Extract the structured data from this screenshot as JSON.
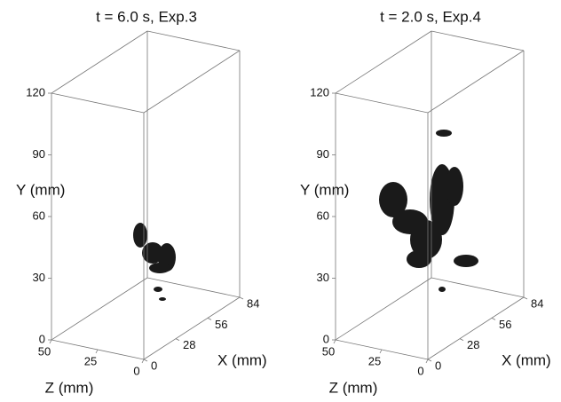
{
  "chart_data": [
    {
      "type": "box3d",
      "title": "t = 6.0 s, Exp.3",
      "xlabel": "X (mm)",
      "ylabel": "Y (mm)",
      "zlabel": "Z (mm)",
      "xlim": [
        0,
        84
      ],
      "xticks": [
        0,
        28,
        56,
        84
      ],
      "ylim": [
        0,
        120
      ],
      "yticks": [
        0,
        30,
        60,
        90,
        120
      ],
      "zlim": [
        50,
        0
      ],
      "zticks": [
        50,
        25,
        0
      ]
    },
    {
      "type": "box3d",
      "title": "t = 2.0 s, Exp.4",
      "xlabel": "X (mm)",
      "ylabel": "Y (mm)",
      "zlabel": "Z (mm)",
      "xlim": [
        0,
        84
      ],
      "xticks": [
        0,
        28,
        56,
        84
      ],
      "ylim": [
        0,
        120
      ],
      "yticks": [
        0,
        30,
        60,
        90,
        120
      ],
      "zlim": [
        50,
        0
      ],
      "zticks": [
        50,
        25,
        0
      ]
    }
  ]
}
